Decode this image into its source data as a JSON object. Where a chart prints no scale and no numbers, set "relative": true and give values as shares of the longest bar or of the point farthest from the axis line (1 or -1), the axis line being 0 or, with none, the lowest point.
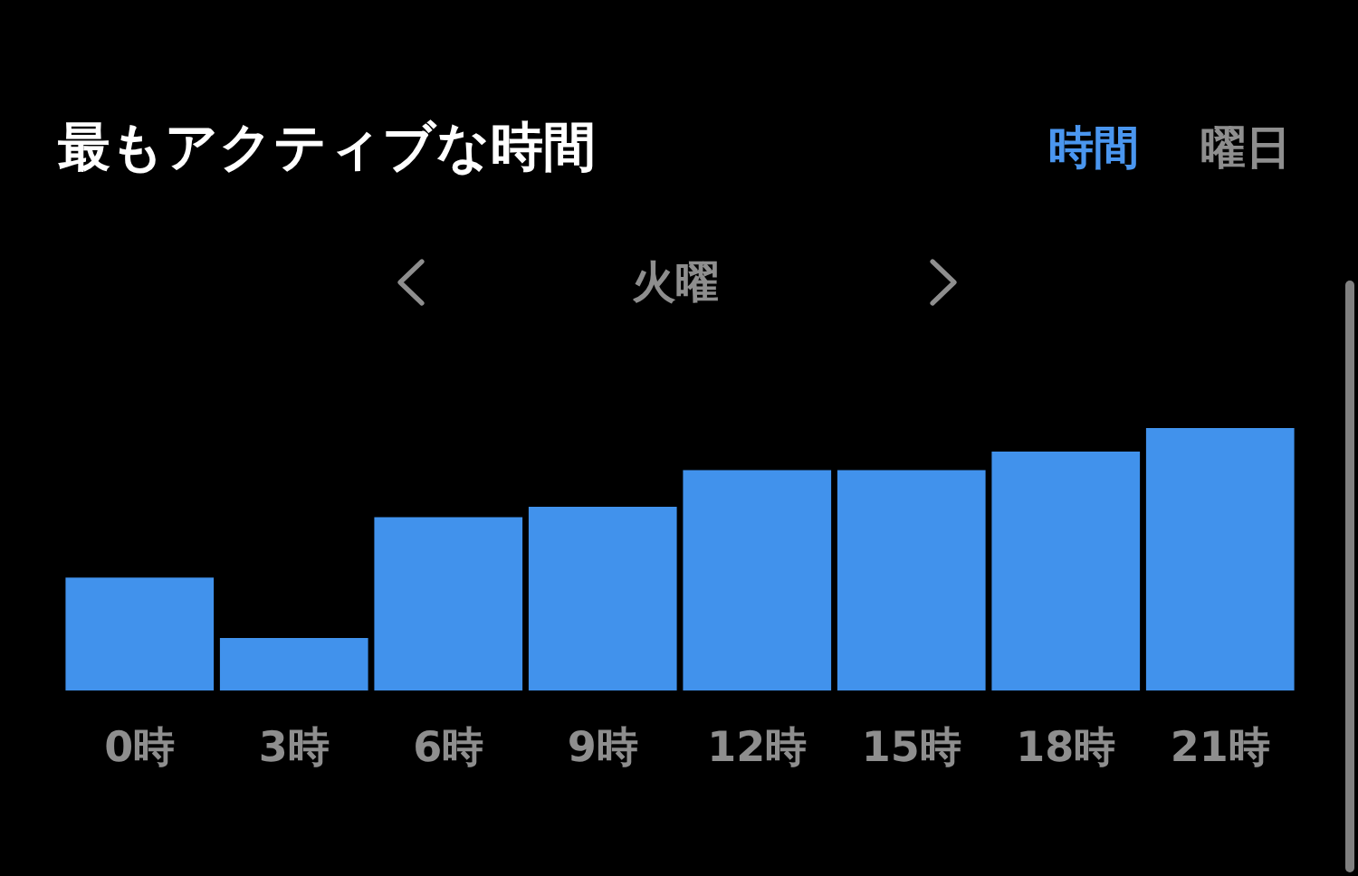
{
  "chart_data": {
    "type": "bar",
    "title": "最もアクティブな時間",
    "subtitle": "火曜",
    "annotations": [
      "時間",
      "曜日"
    ],
    "categories": [
      "0時",
      "3時",
      "6時",
      "9時",
      "12時",
      "15時",
      "18時",
      "21時"
    ],
    "values": [
      0.43,
      0.2,
      0.66,
      0.7,
      0.84,
      0.84,
      0.91,
      1
    ],
    "color": "#4192ec",
    "relative": true
  }
}
